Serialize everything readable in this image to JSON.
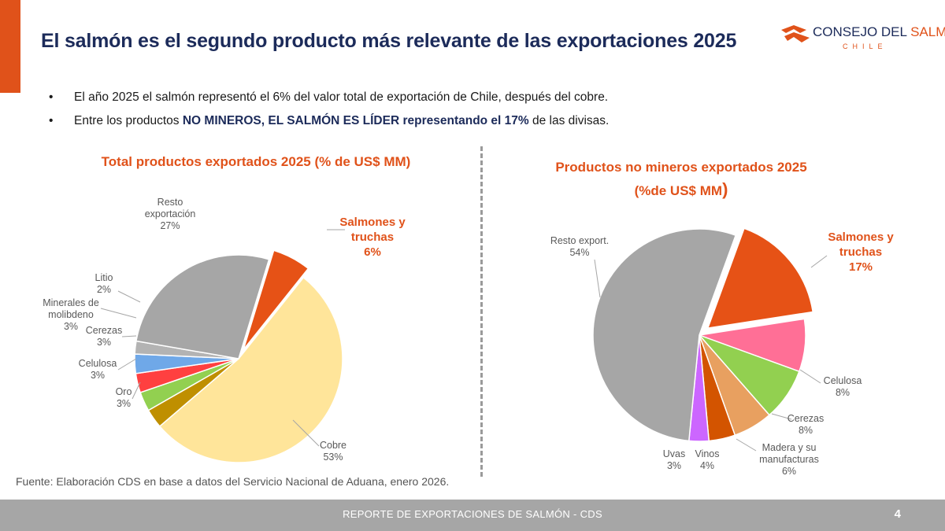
{
  "header": {
    "title": "El salmón es el segundo producto más relevante de las exportaciones 2025",
    "logo_text_part1": "CONSEJO DEL ",
    "logo_text_part2": "SALMÓN",
    "logo_sub": "CHILE"
  },
  "bullets": {
    "b1": "El año 2025 el salmón representó el 6% del valor total de exportación de Chile, después del cobre.",
    "b2_pre": "Entre los productos ",
    "b2_bold": "NO MINEROS, EL SALMÓN ES LÍDER representando el 17%",
    "b2_post": " de las divisas."
  },
  "chart_data": [
    {
      "type": "pie",
      "title": "Total productos exportados 2025 (% de US$ MM)",
      "slices": [
        {
          "label": "Salmones y truchas",
          "value": 6,
          "value_label": "6%",
          "color": "#e65216",
          "exploded": true,
          "emphasis": true
        },
        {
          "label": "Cobre",
          "value": 53,
          "value_label": "53%",
          "color": "#ffe59a"
        },
        {
          "label": "Oro",
          "value": 3,
          "value_label": "3%",
          "color": "#bf8f00"
        },
        {
          "label": "Celulosa",
          "value": 3,
          "value_label": "3%",
          "color": "#92d050"
        },
        {
          "label": "Cerezas",
          "value": 3,
          "value_label": "3%",
          "color": "#ff4040"
        },
        {
          "label": "Minerales de molibdeno",
          "value": 3,
          "value_label": "3%",
          "color": "#6fa8e8"
        },
        {
          "label": "Litio",
          "value": 2,
          "value_label": "2%",
          "color": "#b3b3b3"
        },
        {
          "label": "Resto exportación",
          "value": 27,
          "value_label": "27%",
          "color": "#a6a6a6"
        }
      ]
    },
    {
      "type": "pie",
      "title_line1": "Productos no mineros exportados 2025",
      "title_line2": "(%de US$ MM",
      "title_paren": ")",
      "slices": [
        {
          "label": "Salmones y truchas",
          "value": 17,
          "value_label": "17%",
          "color": "#e65216",
          "exploded": true,
          "emphasis": true
        },
        {
          "label": "Celulosa",
          "value": 8,
          "value_label": "8%",
          "color": "#ff6f96"
        },
        {
          "label": "Cerezas",
          "value": 8,
          "value_label": "8%",
          "color": "#92d050"
        },
        {
          "label": "Madera y su manufacturas",
          "value": 6,
          "value_label": "6%",
          "color": "#e8a060"
        },
        {
          "label": "Vinos",
          "value": 4,
          "value_label": "4%",
          "color": "#d35400"
        },
        {
          "label": "Uvas",
          "value": 3,
          "value_label": "3%",
          "color": "#cc66ff"
        },
        {
          "label": "Resto export.",
          "value": 54,
          "value_label": "54%",
          "color": "#a6a6a6"
        }
      ]
    }
  ],
  "source": "Fuente: Elaboración CDS en base a datos del Servicio Nacional de Aduana, enero 2026.",
  "footer": {
    "text": "REPORTE DE EXPORTACIONES DE SALMÓN - CDS",
    "page": "4"
  }
}
